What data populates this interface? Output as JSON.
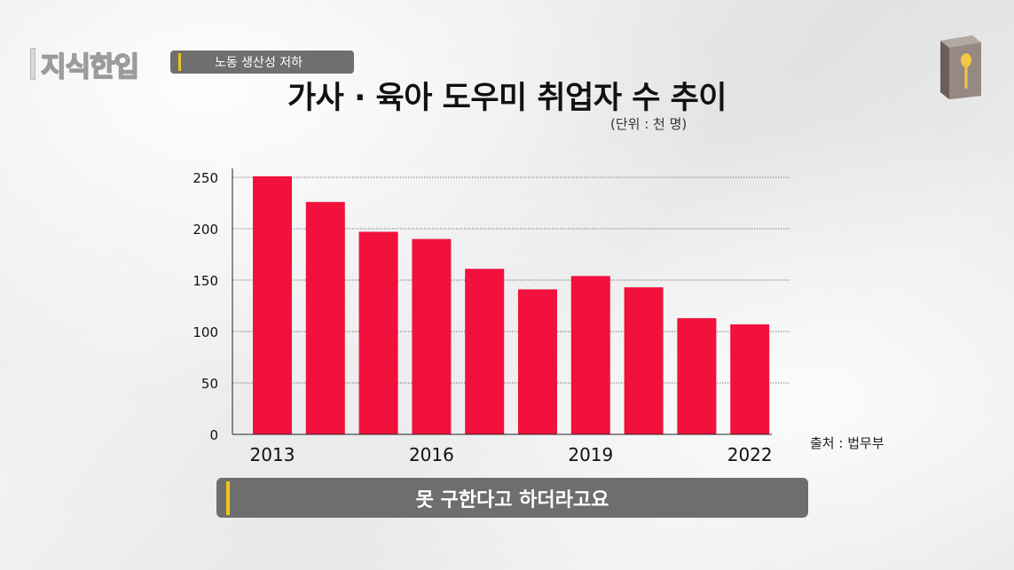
{
  "header": {
    "logo_text": "지식한입",
    "topic_label": "노동 생산성 저하"
  },
  "colors": {
    "bar": "#f1113c",
    "accent": "#f0c419",
    "pill": "#6f6f6f"
  },
  "chart_data": {
    "type": "bar",
    "title": "가사 · 육아 도우미 취업자 수 추이",
    "unit": "(단위 : 천 명)",
    "source": "출처 : 법무부",
    "categories": [
      "2013",
      "2014",
      "2015",
      "2016",
      "2017",
      "2018",
      "2019",
      "2020",
      "2021",
      "2022"
    ],
    "x_tick_labels": [
      "2013",
      "",
      "",
      "2016",
      "",
      "",
      "2019",
      "",
      "",
      "2022"
    ],
    "values": [
      251,
      226,
      197,
      190,
      161,
      141,
      154,
      143,
      113,
      107
    ],
    "yticks": [
      0,
      50,
      100,
      150,
      200,
      250
    ],
    "ylim": [
      0,
      250
    ],
    "grid": true
  },
  "caption": {
    "text": "못 구한다고 하더라고요"
  },
  "icons": {
    "top_right": "book-spoon-icon"
  }
}
